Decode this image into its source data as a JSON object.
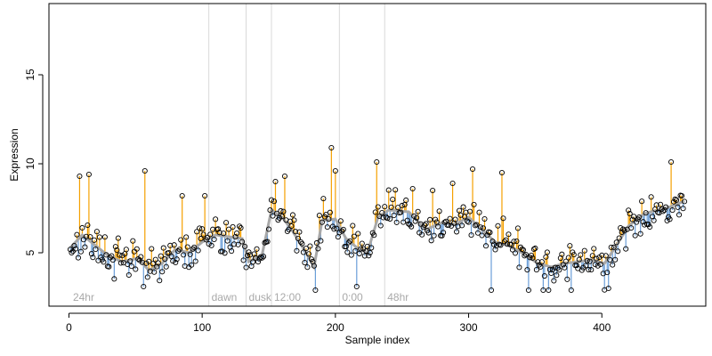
{
  "chart_data": {
    "type": "scatter",
    "xlabel": "Sample index",
    "ylabel": "Expression",
    "xlim": [
      -15,
      478
    ],
    "ylim": [
      2,
      19
    ],
    "x_ticks": [
      0,
      100,
      200,
      300,
      400
    ],
    "y_ticks": [
      5,
      10,
      15
    ],
    "grid": false,
    "colors": {
      "above": "#f5a000",
      "below": "#6a9ed8",
      "smooth": "#a8a8a8",
      "point_edge": "#000000",
      "period_line": "#d9d9d9",
      "period_text": "#a9a9a9"
    },
    "period_markers": [
      {
        "x": 105,
        "label": "dawn"
      },
      {
        "x": 133,
        "label": "dusk"
      },
      {
        "x": 152,
        "label": "12:00"
      },
      {
        "x": 203,
        "label": "0:00"
      },
      {
        "x": 237,
        "label": "48hr"
      }
    ],
    "period_start_label": {
      "x": 3,
      "label": "24hr"
    },
    "anchors": [
      [
        0,
        5.2
      ],
      [
        10,
        6.0
      ],
      [
        20,
        5.4
      ],
      [
        30,
        4.8
      ],
      [
        40,
        4.5
      ],
      [
        52,
        4.7
      ],
      [
        60,
        4.0
      ],
      [
        70,
        4.4
      ],
      [
        80,
        5.2
      ],
      [
        90,
        5.0
      ],
      [
        100,
        5.6
      ],
      [
        110,
        6.0
      ],
      [
        120,
        5.9
      ],
      [
        130,
        5.8
      ],
      [
        135,
        4.5
      ],
      [
        145,
        4.9
      ],
      [
        152,
        7.4
      ],
      [
        160,
        7.0
      ],
      [
        168,
        6.2
      ],
      [
        178,
        5.0
      ],
      [
        184,
        4.2
      ],
      [
        190,
        6.8
      ],
      [
        200,
        6.9
      ],
      [
        208,
        5.8
      ],
      [
        216,
        5.3
      ],
      [
        224,
        5.0
      ],
      [
        232,
        7.0
      ],
      [
        240,
        7.4
      ],
      [
        255,
        7.3
      ],
      [
        268,
        6.3
      ],
      [
        280,
        6.7
      ],
      [
        290,
        6.6
      ],
      [
        300,
        7.0
      ],
      [
        310,
        6.3
      ],
      [
        320,
        5.6
      ],
      [
        330,
        5.4
      ],
      [
        340,
        5.0
      ],
      [
        352,
        4.4
      ],
      [
        362,
        4.2
      ],
      [
        372,
        4.4
      ],
      [
        382,
        4.5
      ],
      [
        392,
        4.6
      ],
      [
        402,
        4.4
      ],
      [
        410,
        5.3
      ],
      [
        420,
        6.5
      ],
      [
        432,
        7.2
      ],
      [
        442,
        7.4
      ],
      [
        452,
        7.6
      ],
      [
        462,
        7.9
      ]
    ],
    "n_points": 462,
    "noise_sd": 0.9,
    "seed": 17,
    "outliers": [
      [
        8,
        9.3
      ],
      [
        15,
        9.4
      ],
      [
        57,
        9.6
      ],
      [
        85,
        8.2
      ],
      [
        102,
        8.2
      ],
      [
        155,
        9.0
      ],
      [
        162,
        9.3
      ],
      [
        197,
        10.9
      ],
      [
        200,
        9.6
      ],
      [
        231,
        10.1
      ],
      [
        258,
        8.6
      ],
      [
        273,
        8.5
      ],
      [
        288,
        8.9
      ],
      [
        303,
        9.7
      ],
      [
        325,
        9.5
      ],
      [
        452,
        10.1
      ],
      [
        460,
        8.2
      ],
      [
        56,
        3.1
      ],
      [
        185,
        2.9
      ],
      [
        216,
        3.1
      ],
      [
        317,
        2.9
      ],
      [
        345,
        2.9
      ],
      [
        356,
        2.9
      ],
      [
        377,
        2.9
      ],
      [
        405,
        3.0
      ]
    ]
  }
}
